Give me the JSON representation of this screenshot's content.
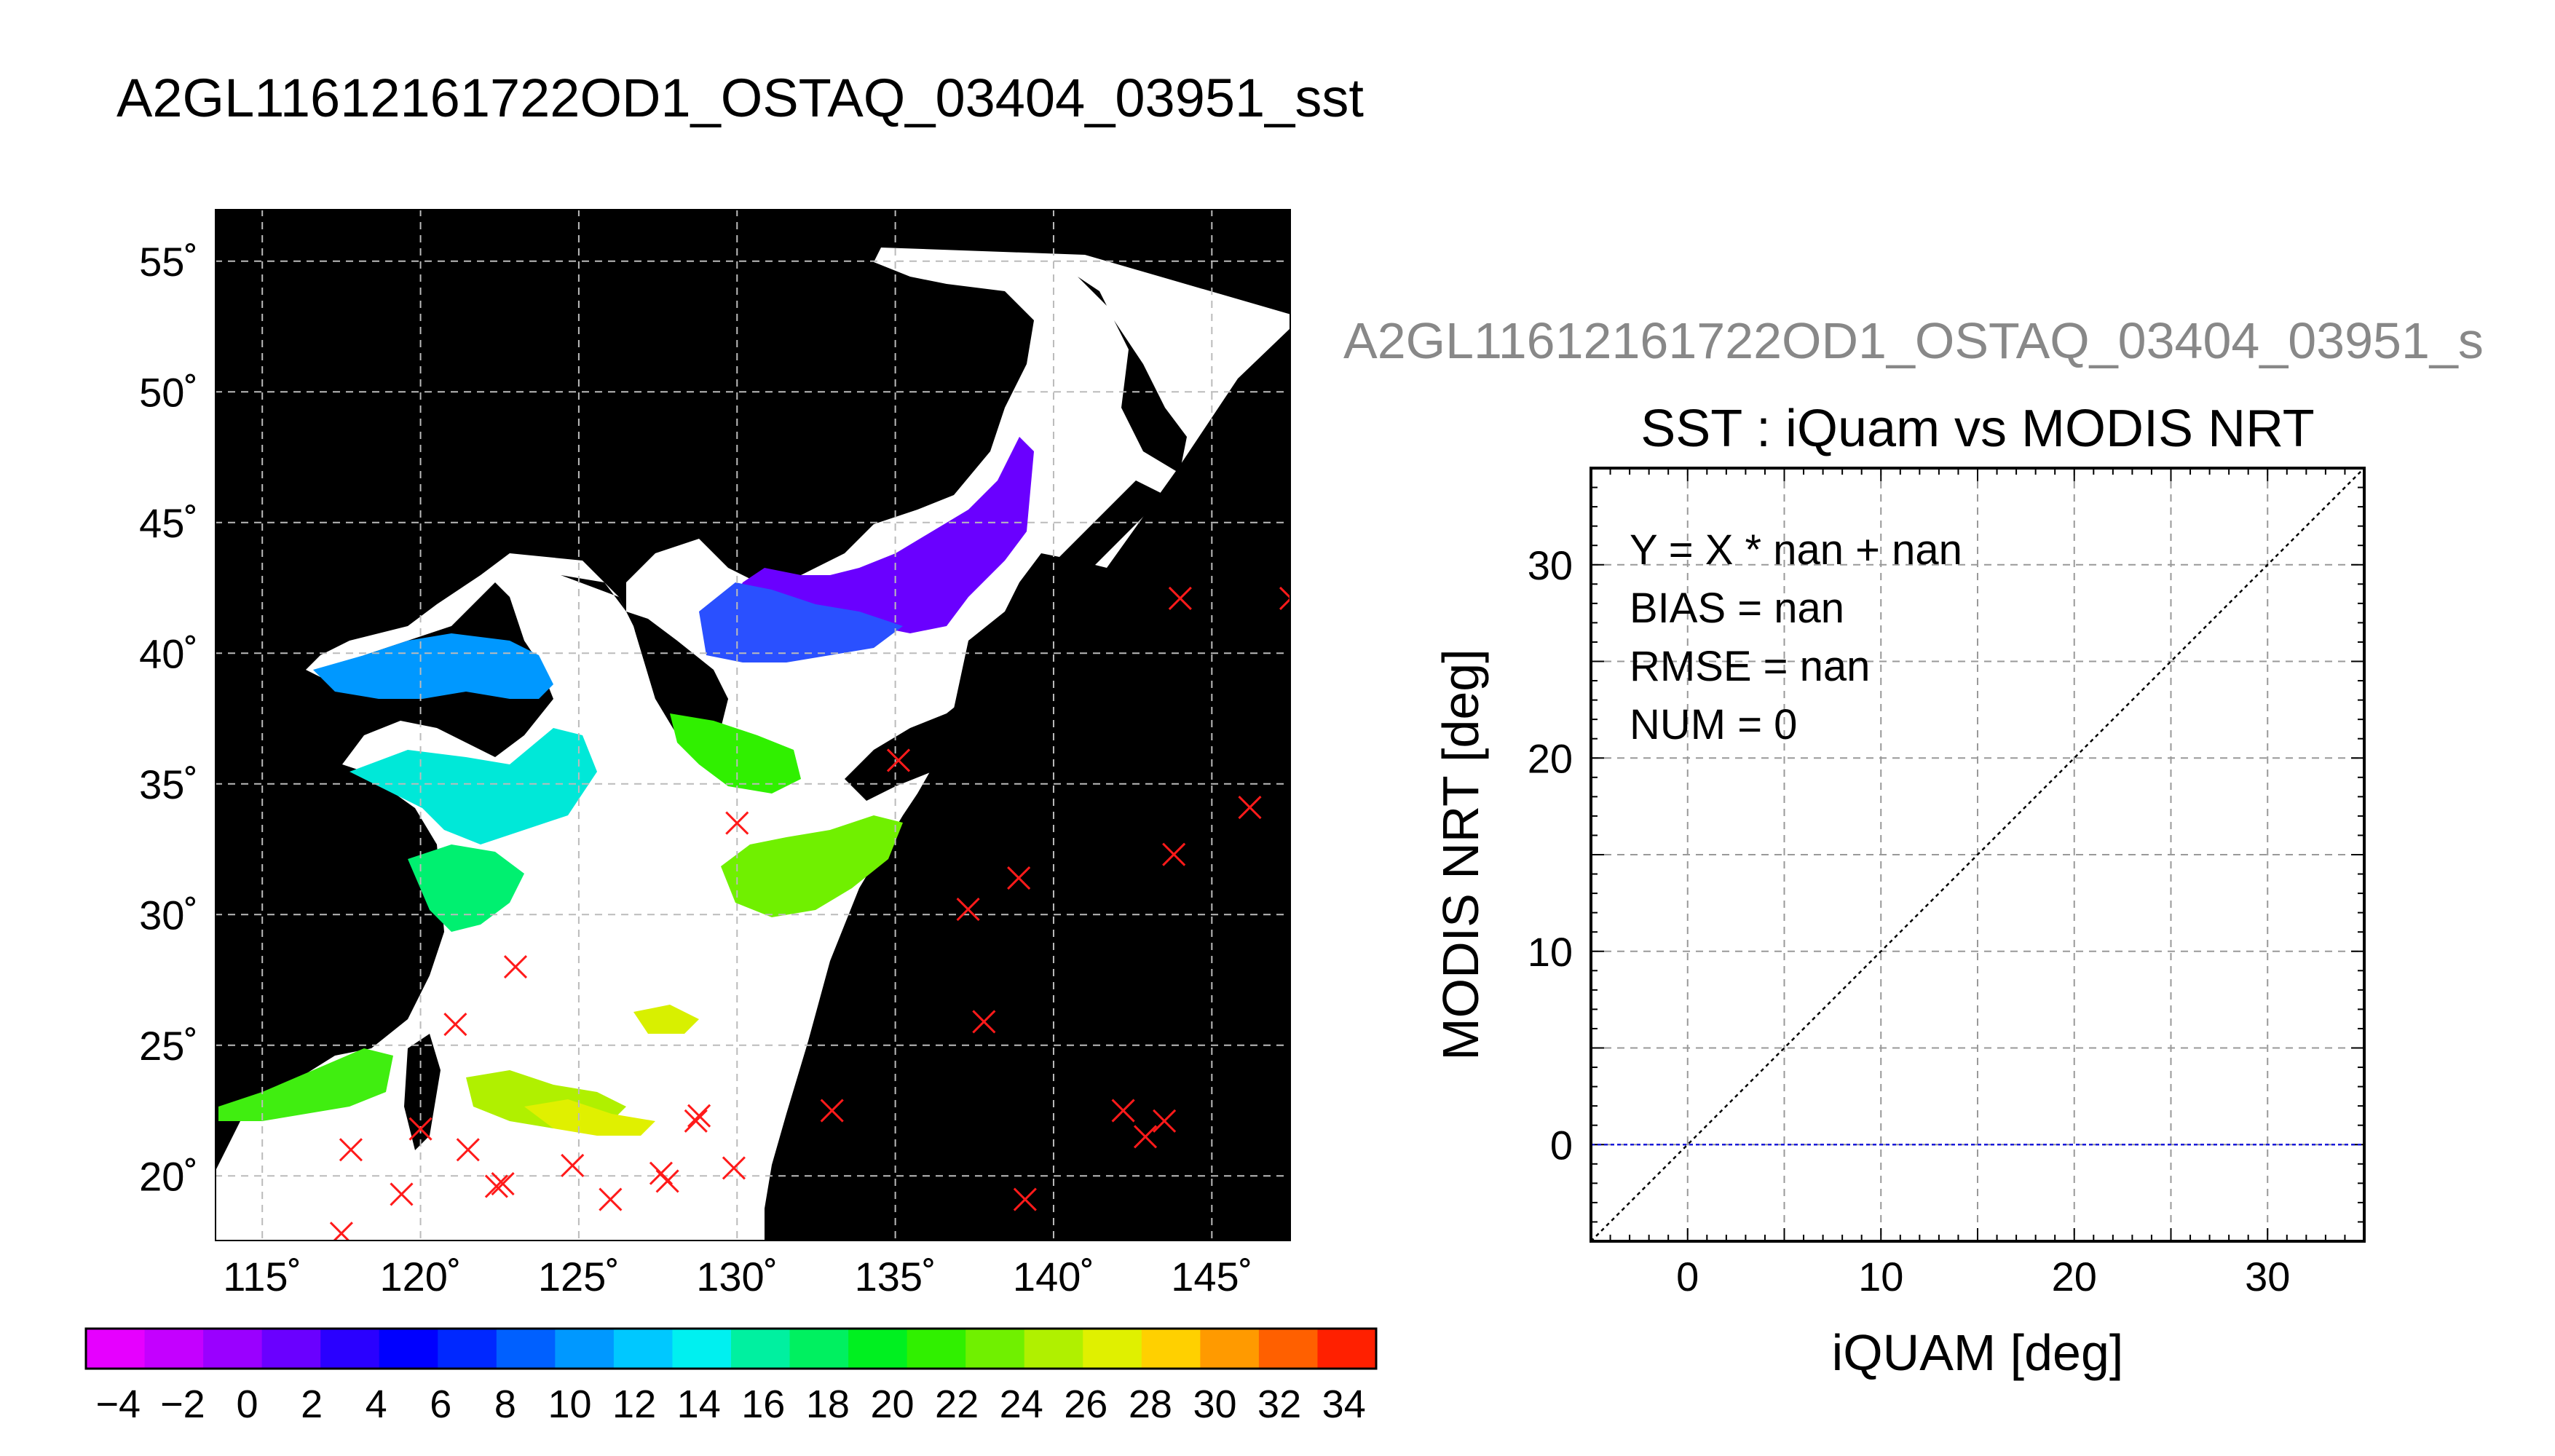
{
  "map_title": "A2GL11612161722OD1_OSTAQ_03404_03951_sst",
  "scatter_title_overflow": "A2GL11612161722OD1_OSTAQ_03404_03951_s",
  "chart_data": [
    {
      "type": "map",
      "lat_ticks": [
        "55˚",
        "50˚",
        "45˚",
        "40˚",
        "35˚",
        "30˚",
        "25˚",
        "20˚"
      ],
      "lon_ticks": [
        "115˚",
        "120˚",
        "125˚",
        "130˚",
        "135˚",
        "140˚",
        "145˚"
      ],
      "lat_values": [
        55,
        50,
        45,
        40,
        35,
        30,
        25,
        20
      ],
      "lon_values": [
        115,
        120,
        125,
        130,
        135,
        140,
        145
      ],
      "lon_range": [
        113.5,
        147.5
      ],
      "lat_range": [
        17.5,
        57
      ],
      "grid": true,
      "colorbar": {
        "min": -5,
        "max": 35,
        "labels": [
          "−4",
          "−2",
          "0",
          "2",
          "4",
          "6",
          "8",
          "10",
          "12",
          "14",
          "16",
          "18",
          "20",
          "22",
          "24",
          "26",
          "28",
          "30",
          "32",
          "34"
        ],
        "label_values": [
          -4,
          -2,
          0,
          2,
          4,
          6,
          8,
          10,
          12,
          14,
          16,
          18,
          20,
          22,
          24,
          26,
          28,
          30,
          32,
          34
        ],
        "colors": [
          "#e600ff",
          "#c400ff",
          "#9a00ff",
          "#6a00ff",
          "#2a00ff",
          "#0000ff",
          "#0028ff",
          "#0060ff",
          "#0098ff",
          "#00c8ff",
          "#00f0f0",
          "#00f0a0",
          "#00f060",
          "#00f020",
          "#30f000",
          "#70f000",
          "#b0f000",
          "#e0f000",
          "#ffd000",
          "#ff9a00",
          "#ff6000",
          "#ff2000"
        ]
      },
      "markers": [
        [
          144.0,
          42.1
        ],
        [
          147.5,
          42.1
        ],
        [
          135.1,
          35.9
        ],
        [
          146.2,
          34.1
        ],
        [
          143.8,
          32.3
        ],
        [
          130.0,
          33.5
        ],
        [
          138.9,
          31.4
        ],
        [
          137.3,
          30.2
        ],
        [
          123.0,
          28.0
        ],
        [
          137.8,
          25.9
        ],
        [
          121.1,
          25.8
        ],
        [
          142.2,
          22.5
        ],
        [
          143.5,
          22.1
        ],
        [
          142.9,
          21.5
        ],
        [
          133.0,
          22.5
        ],
        [
          128.8,
          22.3
        ],
        [
          128.7,
          22.1
        ],
        [
          117.8,
          21.0
        ],
        [
          120.0,
          21.8
        ],
        [
          121.5,
          21.0
        ],
        [
          124.8,
          20.4
        ],
        [
          127.6,
          20.1
        ],
        [
          127.8,
          19.8
        ],
        [
          129.9,
          20.3
        ],
        [
          122.6,
          19.7
        ],
        [
          122.4,
          19.6
        ],
        [
          119.4,
          19.3
        ],
        [
          126.0,
          19.1
        ],
        [
          139.1,
          19.1
        ],
        [
          117.5,
          17.8
        ]
      ]
    },
    {
      "type": "scatter",
      "title": "SST : iQuam vs MODIS NRT",
      "xlabel": "iQUAM [deg]",
      "ylabel": "MODIS NRT [deg]",
      "xlim": [
        -5,
        35
      ],
      "ylim": [
        -5,
        35
      ],
      "xticks": [
        0,
        10,
        20,
        30
      ],
      "yticks": [
        0,
        10,
        20,
        30
      ],
      "grid": true,
      "series": [],
      "reference_lines": {
        "diagonal": true,
        "zero_line": true,
        "zero_line_color": "#1a1ad9"
      },
      "annotations": [
        "Y = X * nan + nan",
        "BIAS = nan",
        "RMSE = nan",
        "NUM = 0"
      ]
    }
  ]
}
